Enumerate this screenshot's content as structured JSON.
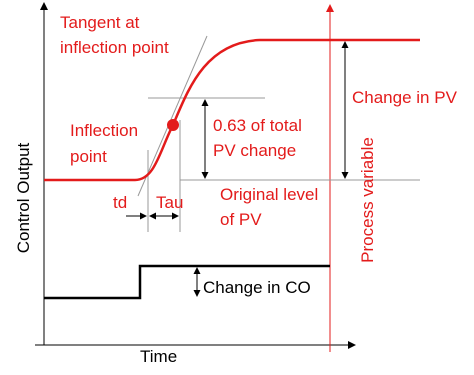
{
  "axes": {
    "x_label": "Time",
    "y_label": "Control Output",
    "y2_label": "Process variable"
  },
  "annotations": {
    "tangent": [
      "Tangent at",
      "inflection point"
    ],
    "inflection": [
      "Inflection",
      "point"
    ],
    "fraction": [
      "0.63 of total",
      "PV change"
    ],
    "change_pv": "Change in PV",
    "original": [
      "Original level",
      "of PV"
    ],
    "td": "td",
    "tau": "Tau",
    "change_co": "Change in CO"
  }
}
